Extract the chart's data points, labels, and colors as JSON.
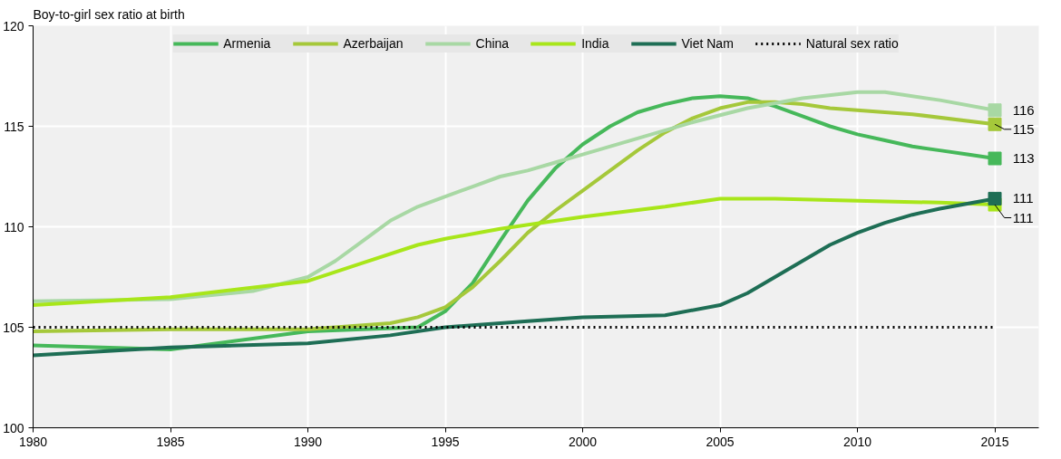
{
  "chart_data": {
    "type": "line",
    "ylabel": "Boy-to-girl sex ratio at birth",
    "xlim": [
      1980,
      2016.6
    ],
    "xticks": [
      1980,
      1985,
      1990,
      1995,
      2000,
      2005,
      2010,
      2015
    ],
    "ylim": [
      100,
      120
    ],
    "yticks": [
      100,
      105,
      110,
      115,
      120
    ],
    "grid": true,
    "legend": "top",
    "line_style": "solid",
    "ref_lines": [
      {
        "axis": "y",
        "value": 105,
        "label": "Natural sex ratio",
        "color": "#000000",
        "line_style": "dotted"
      }
    ],
    "series": [
      {
        "name": "Armenia",
        "color": "#46b85a",
        "x": [
          1980,
          1985,
          1990,
          1994,
          1995,
          1996,
          1997,
          1998,
          1999,
          2000,
          2001,
          2002,
          2003,
          2004,
          2005,
          2006,
          2007,
          2008,
          2009,
          2010,
          2011,
          2012,
          2013,
          2014,
          2015
        ],
        "values": [
          104.1,
          103.9,
          104.8,
          105.0,
          105.8,
          107.2,
          109.3,
          111.3,
          112.9,
          114.1,
          115.0,
          115.7,
          116.1,
          116.4,
          116.5,
          116.4,
          116.0,
          115.5,
          115.0,
          114.6,
          114.3,
          114.0,
          113.8,
          113.6,
          113.4
        ],
        "value_labels": [
          null,
          null,
          null,
          null,
          null,
          null,
          null,
          null,
          null,
          null,
          null,
          null,
          null,
          null,
          null,
          null,
          null,
          null,
          null,
          null,
          null,
          null,
          null,
          null,
          "113"
        ]
      },
      {
        "name": "Azerbaijan",
        "color": "#a5c83a",
        "x": [
          1980,
          1985,
          1990,
          1993,
          1994,
          1995,
          1996,
          1997,
          1998,
          1999,
          2000,
          2001,
          2002,
          2003,
          2004,
          2005,
          2006,
          2007,
          2008,
          2009,
          2010,
          2012,
          2015
        ],
        "values": [
          104.8,
          104.9,
          104.9,
          105.2,
          105.5,
          106.0,
          107.0,
          108.3,
          109.7,
          110.8,
          111.8,
          112.8,
          113.8,
          114.7,
          115.4,
          115.9,
          116.2,
          116.2,
          116.1,
          115.9,
          115.8,
          115.6,
          115.1
        ],
        "value_labels": [
          null,
          null,
          null,
          null,
          null,
          null,
          null,
          null,
          null,
          null,
          null,
          null,
          null,
          null,
          null,
          null,
          null,
          null,
          null,
          null,
          null,
          null,
          "115"
        ]
      },
      {
        "name": "China",
        "color": "#a8d8a4",
        "x": [
          1980,
          1985,
          1988,
          1990,
          1991,
          1992,
          1993,
          1994,
          1995,
          1996,
          1997,
          1998,
          1999,
          2000,
          2002,
          2004,
          2006,
          2008,
          2010,
          2011,
          2013,
          2015
        ],
        "values": [
          106.3,
          106.4,
          106.8,
          107.5,
          108.3,
          109.3,
          110.3,
          111.0,
          111.5,
          112.0,
          112.5,
          112.8,
          113.2,
          113.6,
          114.4,
          115.2,
          115.9,
          116.4,
          116.7,
          116.7,
          116.3,
          115.8
        ],
        "value_labels": [
          null,
          null,
          null,
          null,
          null,
          null,
          null,
          null,
          null,
          null,
          null,
          null,
          null,
          null,
          null,
          null,
          null,
          null,
          null,
          null,
          null,
          "116"
        ]
      },
      {
        "name": "India",
        "color": "#a8e61a",
        "x": [
          1980,
          1985,
          1990,
          1992,
          1994,
          1995,
          1997,
          2000,
          2003,
          2005,
          2007,
          2010,
          2013,
          2015
        ],
        "values": [
          106.1,
          106.5,
          107.3,
          108.2,
          109.1,
          109.4,
          109.9,
          110.5,
          111.0,
          111.4,
          111.4,
          111.3,
          111.2,
          111.1
        ],
        "value_labels": [
          null,
          null,
          null,
          null,
          null,
          null,
          null,
          null,
          null,
          null,
          null,
          null,
          null,
          "111"
        ]
      },
      {
        "name": "Viet Nam",
        "color": "#1e6e55",
        "x": [
          1980,
          1985,
          1990,
          1993,
          1995,
          1998,
          2000,
          2003,
          2005,
          2006,
          2007,
          2008,
          2009,
          2010,
          2011,
          2012,
          2013,
          2015
        ],
        "values": [
          103.6,
          104.0,
          104.2,
          104.6,
          105.0,
          105.3,
          105.5,
          105.6,
          106.1,
          106.7,
          107.5,
          108.3,
          109.1,
          109.7,
          110.2,
          110.6,
          110.9,
          111.4
        ],
        "value_labels": [
          null,
          null,
          null,
          null,
          null,
          null,
          null,
          null,
          null,
          null,
          null,
          null,
          null,
          null,
          null,
          null,
          null,
          "111"
        ]
      }
    ]
  }
}
